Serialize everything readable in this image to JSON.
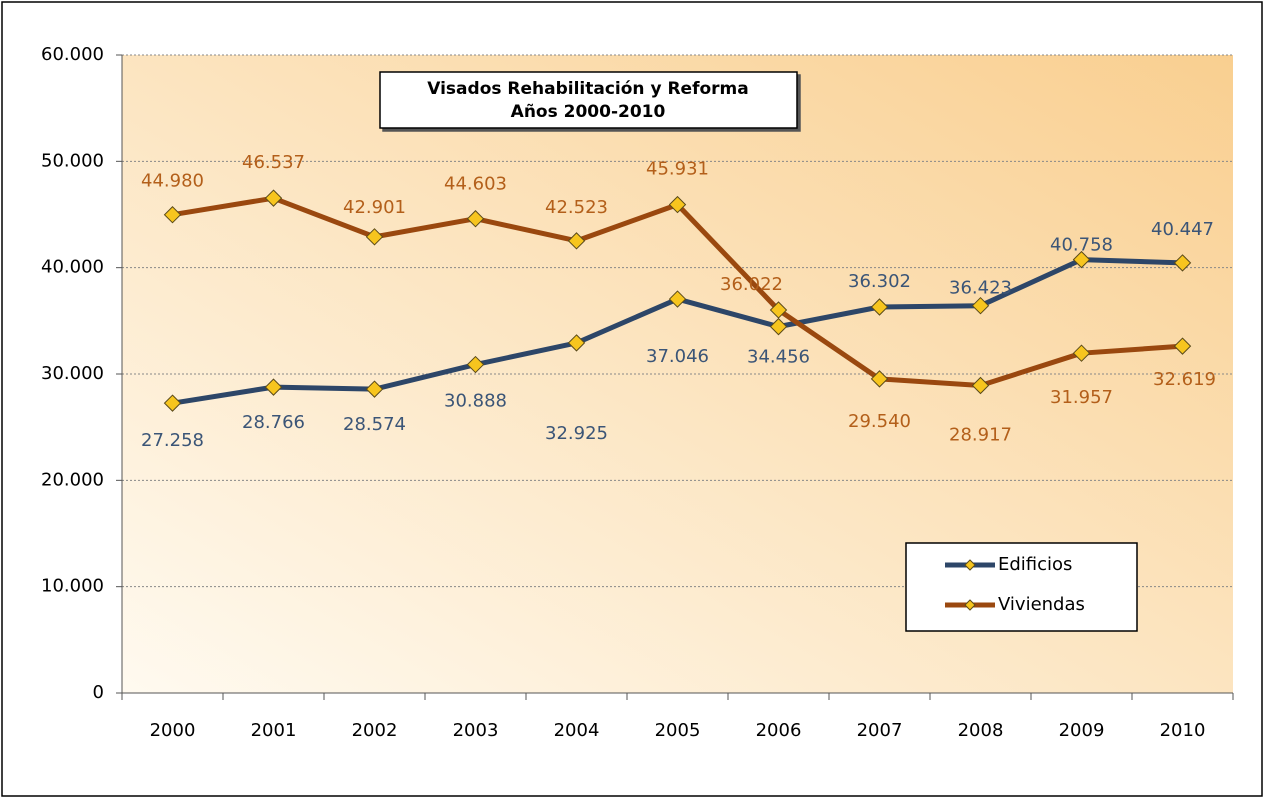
{
  "chart_data": {
    "type": "line",
    "title": "Visados Rehabilitación y Reforma",
    "subtitle": "Años 2000-2010",
    "categories": [
      "2000",
      "2001",
      "2002",
      "2003",
      "2004",
      "2005",
      "2006",
      "2007",
      "2008",
      "2009",
      "2010"
    ],
    "series": [
      {
        "name": "Edificios",
        "color": "#2d4668",
        "label_color": "#3b5577",
        "values": [
          27258,
          28766,
          28574,
          30888,
          32925,
          37046,
          34456,
          36302,
          36423,
          40758,
          40447
        ],
        "value_labels": [
          "27.258",
          "28.766",
          "28.574",
          "30.888",
          "32.925",
          "37.046",
          "34.456",
          "36.302",
          "36.423",
          "40.758",
          "40.447"
        ]
      },
      {
        "name": "Viviendas",
        "color": "#9a480f",
        "label_color": "#b35f1a",
        "values": [
          44980,
          46537,
          42901,
          44603,
          42523,
          45931,
          36022,
          29540,
          28917,
          31957,
          32619
        ],
        "value_labels": [
          "44.980",
          "46.537",
          "42.901",
          "44.603",
          "42.523",
          "45.931",
          "36.022",
          "29.540",
          "28.917",
          "31.957",
          "32.619"
        ]
      }
    ],
    "ylim": [
      0,
      60000
    ],
    "yticks": [
      0,
      {
        "value": 10000,
        "label": "10.000"
      },
      {
        "value": 20000,
        "label": "20.000"
      },
      {
        "value": 30000,
        "label": "30.000"
      },
      {
        "value": 40000,
        "label": "40.000"
      },
      {
        "value": 50000,
        "label": "50.000"
      },
      {
        "value": 60000,
        "label": "60.000"
      }
    ],
    "grid": true,
    "marker_color": "#f7c51e"
  }
}
